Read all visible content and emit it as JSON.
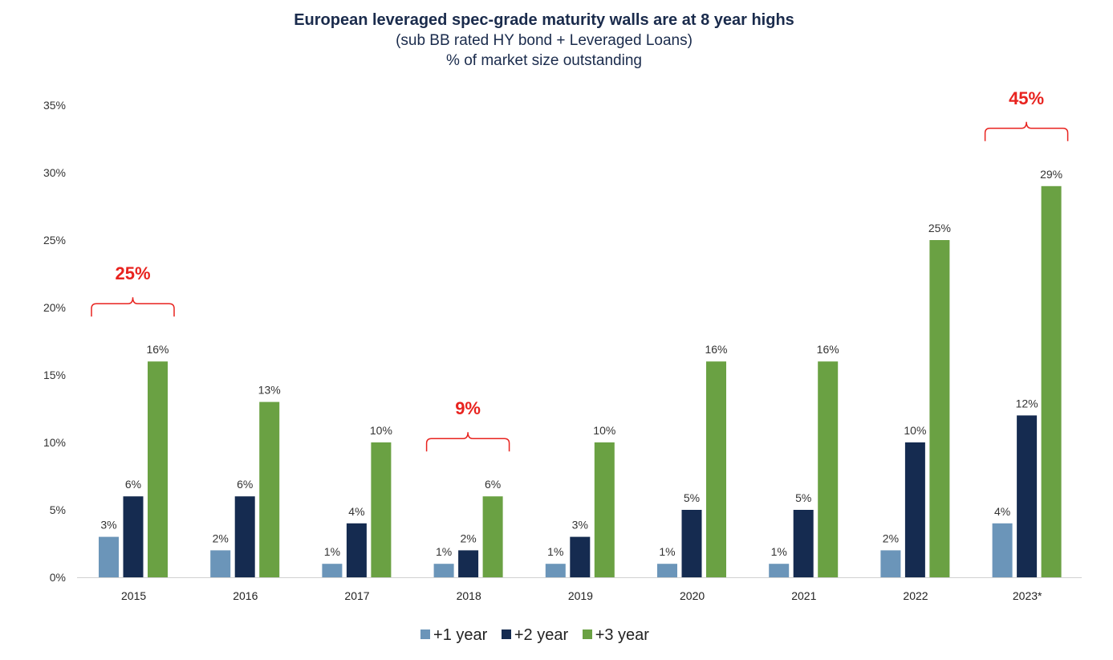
{
  "title": "European leveraged spec-grade maturity walls are at 8 year highs",
  "subtitle1": "(sub BB rated HY bond + Leveraged Loans)",
  "subtitle2": "% of market size outstanding",
  "chart_data": {
    "type": "bar",
    "categories": [
      "2015",
      "2016",
      "2017",
      "2018",
      "2019",
      "2020",
      "2021",
      "2022",
      "2023*"
    ],
    "series": [
      {
        "name": "+1 year",
        "color": "#6b95b9",
        "values": [
          3,
          2,
          1,
          1,
          1,
          1,
          1,
          2,
          4
        ]
      },
      {
        "name": "+2 year",
        "color": "#152b50",
        "values": [
          6,
          6,
          4,
          2,
          3,
          5,
          5,
          10,
          12
        ]
      },
      {
        "name": "+3 year",
        "color": "#6aa143",
        "values": [
          16,
          13,
          10,
          6,
          10,
          16,
          16,
          25,
          29
        ]
      }
    ],
    "value_suffix": "%",
    "ylim": [
      0,
      35
    ],
    "yticks": [
      "0%",
      "5%",
      "10%",
      "15%",
      "20%",
      "25%",
      "30%",
      "35%"
    ],
    "grid": false,
    "legend_position": "bottom",
    "annotations": [
      {
        "category": "2015",
        "text": "25%",
        "color": "#e8231f"
      },
      {
        "category": "2018",
        "text": "9%",
        "color": "#e8231f"
      },
      {
        "category": "2023*",
        "text": "45%",
        "color": "#e8231f"
      }
    ]
  }
}
